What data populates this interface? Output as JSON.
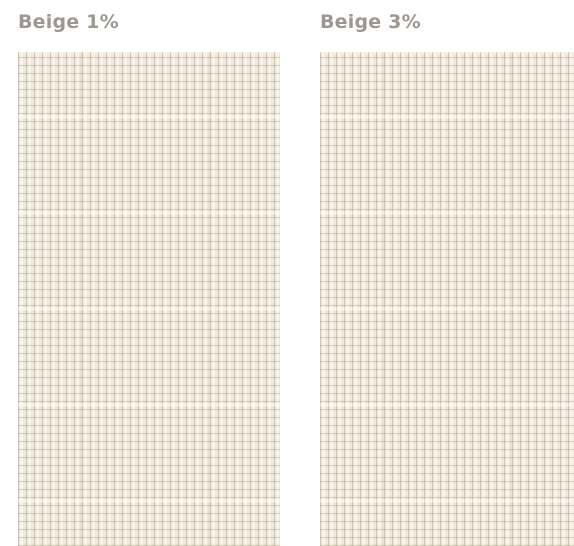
{
  "swatches": [
    {
      "label": "Beige 1%",
      "color": "#ece5d7"
    },
    {
      "label": "Beige 3%",
      "color": "#ece5d7"
    }
  ],
  "label_color": "#9d9791"
}
